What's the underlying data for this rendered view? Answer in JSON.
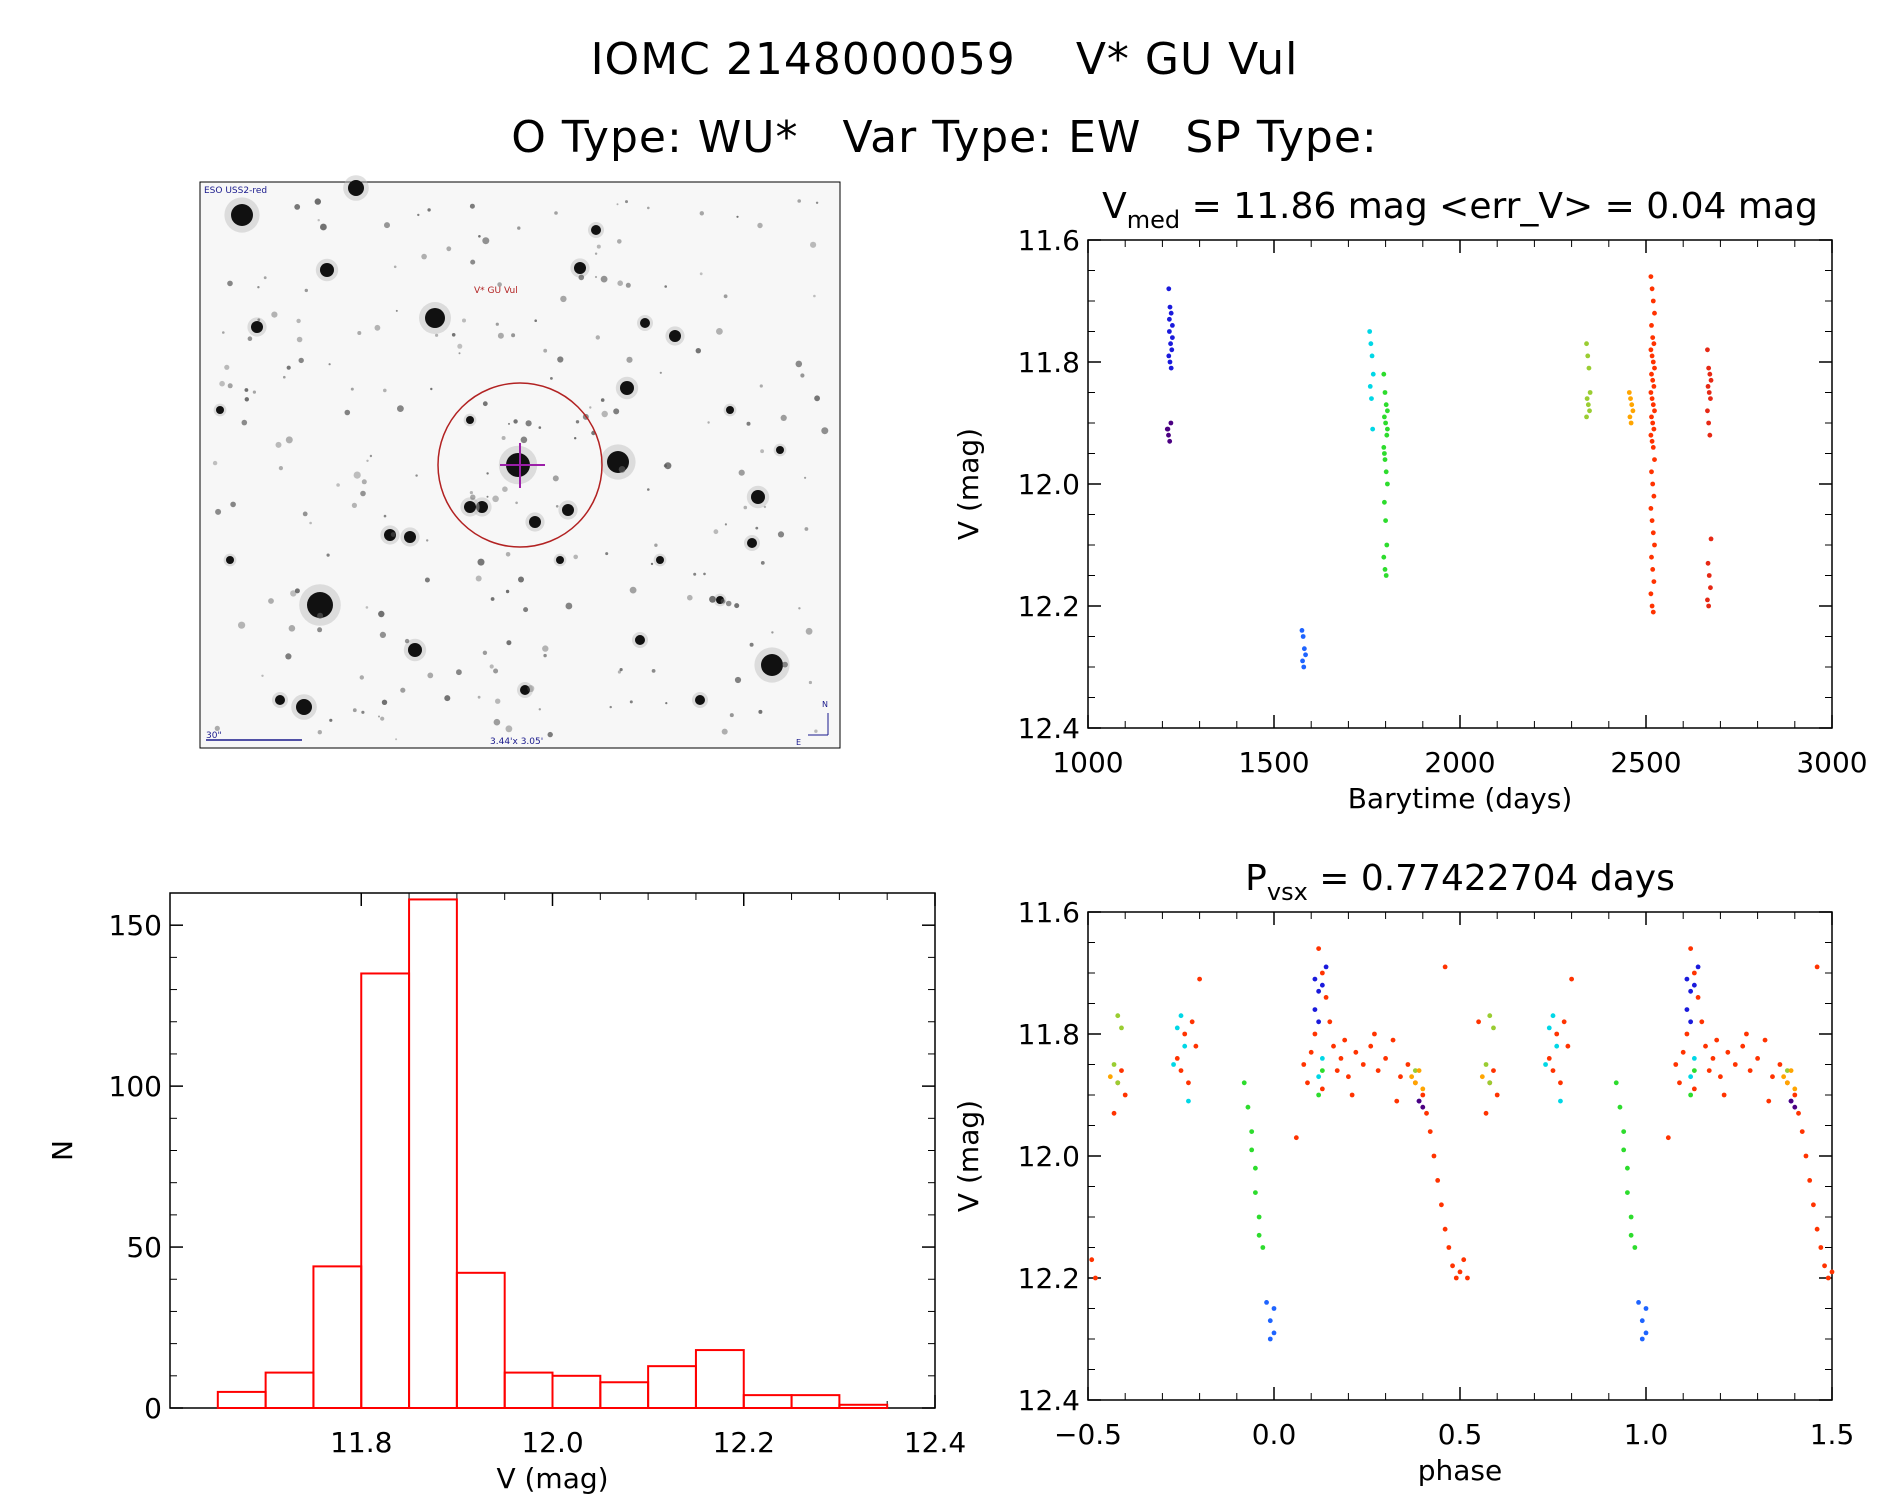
{
  "header": {
    "object_id": "IOMC 2148000059",
    "object_name": "V* GU Vul",
    "otype": "O Type: WU*",
    "vartype": "Var Type: EW",
    "sptype": "SP Type:"
  },
  "finder": {
    "survey_label": "ESO USS2-red",
    "target_label": "V* GU Vul",
    "scale_label": "30\"",
    "fov_label": "3.44'x 3.05'",
    "north_label": "N",
    "east_label": "E"
  },
  "colors": {
    "axis": "#000000",
    "histogram": "#ff0000",
    "circle": "#b22222",
    "crosshair": "#9b1fa8"
  },
  "chart_data": [
    {
      "id": "lightcurve",
      "type": "scatter",
      "title_main": "V",
      "title_sub": "med",
      "title_rest": " = 11.86 mag <err_V> = 0.04 mag",
      "xlabel": "Barytime (days)",
      "ylabel": "V (mag)",
      "xlim": [
        1000,
        3000
      ],
      "ylim": [
        12.4,
        11.6
      ],
      "xticks": [
        1000,
        1500,
        2000,
        2500,
        3000
      ],
      "xtick_labels": [
        "1000",
        "1500",
        "2000",
        "2500",
        "3000"
      ],
      "yticks": [
        11.6,
        11.8,
        12.0,
        12.2,
        12.4
      ],
      "ytick_labels": [
        "11.6",
        "11.8",
        "12.0",
        "12.2",
        "12.4"
      ],
      "series": [
        {
          "color": "#4b0082",
          "t": 1218,
          "mags": [
            11.91,
            11.92,
            11.93,
            11.9,
            11.91
          ]
        },
        {
          "color": "#1a1adc",
          "t": 1222,
          "mags": [
            11.68,
            11.71,
            11.72,
            11.74,
            11.75,
            11.77,
            11.78,
            11.79,
            11.8,
            11.81,
            11.76,
            11.73
          ]
        },
        {
          "color": "#1e64ff",
          "t": 1580,
          "mags": [
            12.24,
            12.25,
            12.27,
            12.28,
            12.29,
            12.3
          ]
        },
        {
          "color": "#00d7e6",
          "t": 1762,
          "mags": [
            11.75,
            11.77,
            11.79,
            11.82,
            11.84,
            11.86,
            11.91
          ]
        },
        {
          "color": "#2ddc2d",
          "t": 1800,
          "mags": [
            11.82,
            11.85,
            11.87,
            11.88,
            11.89,
            11.9,
            11.92,
            11.94,
            11.96,
            11.98,
            12.0,
            12.03,
            12.06,
            12.1,
            12.12,
            12.14,
            12.15,
            11.91,
            11.95
          ]
        },
        {
          "color": "#9acd32",
          "t": 2345,
          "mags": [
            11.77,
            11.79,
            11.81,
            11.85,
            11.86,
            11.87,
            11.88,
            11.89
          ]
        },
        {
          "color": "#ffa500",
          "t": 2460,
          "mags": [
            11.85,
            11.86,
            11.87,
            11.88,
            11.89,
            11.9
          ]
        },
        {
          "color": "#ff3300",
          "t": 2518,
          "mags": [
            11.66,
            11.68,
            11.7,
            11.72,
            11.74,
            11.76,
            11.77,
            11.78,
            11.79,
            11.8,
            11.81,
            11.82,
            11.83,
            11.84,
            11.85,
            11.86,
            11.87,
            11.88,
            11.89,
            11.9,
            11.91,
            11.92,
            11.93,
            11.94,
            11.96,
            11.98,
            12.0,
            12.02,
            12.04,
            12.06,
            12.08,
            12.1,
            12.12,
            12.14,
            12.16,
            12.18,
            12.2,
            12.21
          ]
        },
        {
          "color": "#e62814",
          "t": 2670,
          "mags": [
            11.78,
            11.81,
            11.82,
            11.83,
            11.84,
            11.85,
            11.86,
            11.88,
            11.9,
            11.92,
            12.09,
            12.13,
            12.15,
            12.17,
            12.19,
            12.2
          ]
        }
      ]
    },
    {
      "id": "histogram",
      "type": "bar",
      "xlabel": "V (mag)",
      "ylabel": "N",
      "xlim": [
        11.6,
        12.4
      ],
      "ylim": [
        0,
        160
      ],
      "xticks": [
        11.8,
        12.0,
        12.2,
        12.4
      ],
      "xtick_labels": [
        "11.8",
        "12.0",
        "12.2",
        "12.4"
      ],
      "yticks": [
        0,
        50,
        100,
        150
      ],
      "ytick_labels": [
        "0",
        "50",
        "100",
        "150"
      ],
      "bin_width": 0.05,
      "bin_edges_start": [
        11.65,
        11.7,
        11.75,
        11.8,
        11.85,
        11.9,
        11.95,
        12.0,
        12.05,
        12.1,
        12.15,
        12.2,
        12.25,
        12.3
      ],
      "values": [
        5,
        11,
        44,
        135,
        158,
        42,
        11,
        10,
        8,
        13,
        18,
        4,
        4,
        1
      ]
    },
    {
      "id": "phased",
      "type": "scatter",
      "title_main": "P",
      "title_sub": "vsx",
      "title_rest": " = 0.77422704 days",
      "xlabel": "phase",
      "ylabel": "V (mag)",
      "xlim": [
        -0.5,
        1.5
      ],
      "ylim": [
        12.4,
        11.6
      ],
      "xticks": [
        -0.5,
        0.0,
        0.5,
        1.0,
        1.5
      ],
      "xtick_labels": [
        "−0.5",
        "0.0",
        "0.5",
        "1.0",
        "1.5"
      ],
      "yticks": [
        11.6,
        11.8,
        12.0,
        12.2,
        12.4
      ],
      "ytick_labels": [
        "11.6",
        "11.8",
        "12.0",
        "12.2",
        "12.4"
      ],
      "groups": [
        {
          "color": "#ff3300",
          "points": [
            [
              0.08,
              11.85
            ],
            [
              0.09,
              11.88
            ],
            [
              0.1,
              11.83
            ],
            [
              0.11,
              11.8
            ],
            [
              0.12,
              11.66
            ],
            [
              0.13,
              11.7
            ],
            [
              0.14,
              11.74
            ],
            [
              0.15,
              11.78
            ],
            [
              0.16,
              11.82
            ],
            [
              0.17,
              11.86
            ],
            [
              0.18,
              11.84
            ],
            [
              0.19,
              11.81
            ],
            [
              0.2,
              11.87
            ],
            [
              0.22,
              11.83
            ],
            [
              0.24,
              11.85
            ],
            [
              0.26,
              11.82
            ],
            [
              0.28,
              11.86
            ],
            [
              0.3,
              11.84
            ],
            [
              0.32,
              11.81
            ],
            [
              0.34,
              11.87
            ],
            [
              0.36,
              11.85
            ],
            [
              0.38,
              11.88
            ],
            [
              0.4,
              11.9
            ],
            [
              0.41,
              11.93
            ],
            [
              0.42,
              11.96
            ],
            [
              0.43,
              12.0
            ],
            [
              0.44,
              12.04
            ],
            [
              0.45,
              12.08
            ],
            [
              0.46,
              12.12
            ],
            [
              0.47,
              12.15
            ],
            [
              0.48,
              12.18
            ],
            [
              0.49,
              12.2
            ],
            [
              0.5,
              12.19
            ],
            [
              0.06,
              11.97
            ],
            [
              0.13,
              11.89
            ],
            [
              0.21,
              11.9
            ],
            [
              0.27,
              11.8
            ],
            [
              0.33,
              11.91
            ],
            [
              0.46,
              11.69
            ],
            [
              0.55,
              11.78
            ],
            [
              -0.42,
              11.88
            ],
            [
              -0.41,
              11.86
            ],
            [
              -0.4,
              11.9
            ],
            [
              -0.43,
              11.93
            ],
            [
              -0.26,
              11.84
            ],
            [
              -0.24,
              11.8
            ],
            [
              -0.22,
              11.78
            ],
            [
              -0.2,
              11.71
            ],
            [
              -0.21,
              11.82
            ],
            [
              -0.25,
              11.86
            ],
            [
              -0.23,
              11.88
            ],
            [
              -0.49,
              12.17
            ],
            [
              -0.48,
              12.2
            ]
          ]
        },
        {
          "color": "#1a1adc",
          "points": [
            [
              0.11,
              11.71
            ],
            [
              0.12,
              11.73
            ],
            [
              0.13,
              11.72
            ],
            [
              0.11,
              11.76
            ],
            [
              0.12,
              11.78
            ],
            [
              0.14,
              11.69
            ],
            [
              0.39,
              11.91
            ]
          ]
        },
        {
          "color": "#00d7e6",
          "points": [
            [
              -0.26,
              11.79
            ],
            [
              -0.25,
              11.77
            ],
            [
              -0.24,
              11.82
            ],
            [
              -0.27,
              11.85
            ],
            [
              -0.23,
              11.91
            ],
            [
              0.12,
              11.87
            ],
            [
              0.13,
              11.84
            ]
          ]
        },
        {
          "color": "#2ddc2d",
          "points": [
            [
              -0.08,
              11.88
            ],
            [
              -0.07,
              11.92
            ],
            [
              -0.06,
              11.96
            ],
            [
              -0.06,
              11.99
            ],
            [
              -0.05,
              12.02
            ],
            [
              -0.05,
              12.06
            ],
            [
              -0.04,
              12.1
            ],
            [
              -0.04,
              12.13
            ],
            [
              -0.03,
              12.15
            ],
            [
              0.12,
              11.9
            ],
            [
              0.13,
              11.86
            ]
          ]
        },
        {
          "color": "#9acd32",
          "points": [
            [
              -0.42,
              11.77
            ],
            [
              -0.41,
              11.79
            ],
            [
              -0.43,
              11.85
            ],
            [
              -0.42,
              11.88
            ],
            [
              0.38,
              11.86
            ]
          ]
        },
        {
          "color": "#ffa500",
          "points": [
            [
              0.37,
              11.87
            ],
            [
              0.38,
              11.88
            ],
            [
              0.39,
              11.86
            ],
            [
              0.4,
              11.89
            ],
            [
              -0.44,
              11.87
            ]
          ]
        },
        {
          "color": "#1e64ff",
          "points": [
            [
              -0.02,
              12.24
            ],
            [
              -0.01,
              12.27
            ],
            [
              0.0,
              12.29
            ],
            [
              -0.01,
              12.3
            ],
            [
              0.0,
              12.25
            ]
          ]
        },
        {
          "color": "#4b0082",
          "points": [
            [
              0.39,
              11.91
            ],
            [
              0.4,
              11.92
            ]
          ]
        }
      ]
    }
  ]
}
